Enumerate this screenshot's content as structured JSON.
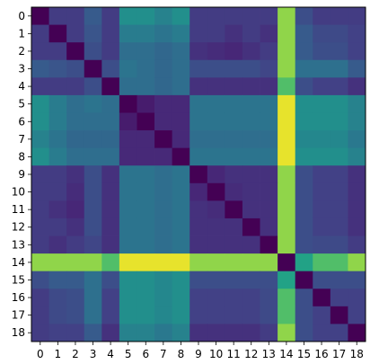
{
  "chart_data": {
    "type": "heatmap",
    "colormap": "viridis",
    "x_ticks": [
      "0",
      "1",
      "2",
      "3",
      "4",
      "5",
      "6",
      "7",
      "8",
      "9",
      "10",
      "11",
      "12",
      "13",
      "14",
      "15",
      "16",
      "17",
      "18"
    ],
    "y_ticks": [
      "0",
      "1",
      "2",
      "3",
      "4",
      "5",
      "6",
      "7",
      "8",
      "9",
      "10",
      "11",
      "12",
      "13",
      "14",
      "15",
      "16",
      "17",
      "18"
    ],
    "value_range": [
      0,
      1
    ],
    "grid": false,
    "values": [
      [
        0.0,
        0.22,
        0.22,
        0.36,
        0.22,
        0.62,
        0.62,
        0.55,
        0.62,
        0.22,
        0.22,
        0.22,
        0.22,
        0.22,
        0.9,
        0.3,
        0.22,
        0.22,
        0.22
      ],
      [
        0.22,
        0.0,
        0.22,
        0.33,
        0.22,
        0.52,
        0.52,
        0.48,
        0.52,
        0.22,
        0.22,
        0.18,
        0.22,
        0.18,
        0.9,
        0.36,
        0.28,
        0.28,
        0.24
      ],
      [
        0.22,
        0.22,
        0.0,
        0.3,
        0.22,
        0.45,
        0.45,
        0.42,
        0.45,
        0.18,
        0.16,
        0.14,
        0.18,
        0.22,
        0.9,
        0.36,
        0.3,
        0.3,
        0.24
      ],
      [
        0.36,
        0.33,
        0.3,
        0.0,
        0.3,
        0.48,
        0.45,
        0.42,
        0.45,
        0.3,
        0.3,
        0.3,
        0.3,
        0.26,
        0.9,
        0.46,
        0.46,
        0.46,
        0.36
      ],
      [
        0.22,
        0.22,
        0.22,
        0.3,
        0.0,
        0.45,
        0.45,
        0.42,
        0.45,
        0.18,
        0.18,
        0.18,
        0.18,
        0.18,
        0.82,
        0.3,
        0.24,
        0.24,
        0.18
      ],
      [
        0.62,
        0.52,
        0.45,
        0.48,
        0.45,
        0.0,
        0.1,
        0.15,
        0.15,
        0.48,
        0.48,
        0.48,
        0.48,
        0.48,
        0.98,
        0.62,
        0.62,
        0.62,
        0.55
      ],
      [
        0.62,
        0.52,
        0.45,
        0.45,
        0.45,
        0.1,
        0.0,
        0.15,
        0.15,
        0.48,
        0.48,
        0.48,
        0.48,
        0.48,
        0.98,
        0.62,
        0.62,
        0.62,
        0.55
      ],
      [
        0.55,
        0.48,
        0.42,
        0.42,
        0.42,
        0.15,
        0.15,
        0.0,
        0.15,
        0.45,
        0.45,
        0.45,
        0.45,
        0.45,
        0.98,
        0.58,
        0.58,
        0.58,
        0.5
      ],
      [
        0.62,
        0.52,
        0.45,
        0.45,
        0.45,
        0.15,
        0.15,
        0.15,
        0.0,
        0.48,
        0.48,
        0.48,
        0.48,
        0.48,
        0.98,
        0.62,
        0.62,
        0.62,
        0.55
      ],
      [
        0.22,
        0.22,
        0.18,
        0.3,
        0.18,
        0.48,
        0.48,
        0.45,
        0.48,
        0.0,
        0.14,
        0.18,
        0.18,
        0.18,
        0.9,
        0.3,
        0.24,
        0.24,
        0.18
      ],
      [
        0.22,
        0.22,
        0.16,
        0.3,
        0.18,
        0.48,
        0.48,
        0.45,
        0.48,
        0.14,
        0.0,
        0.16,
        0.18,
        0.18,
        0.9,
        0.3,
        0.24,
        0.24,
        0.18
      ],
      [
        0.22,
        0.18,
        0.14,
        0.3,
        0.18,
        0.48,
        0.48,
        0.45,
        0.48,
        0.18,
        0.16,
        0.0,
        0.18,
        0.18,
        0.9,
        0.3,
        0.24,
        0.24,
        0.18
      ],
      [
        0.22,
        0.22,
        0.18,
        0.3,
        0.18,
        0.48,
        0.48,
        0.45,
        0.48,
        0.18,
        0.18,
        0.18,
        0.0,
        0.18,
        0.9,
        0.3,
        0.24,
        0.24,
        0.18
      ],
      [
        0.22,
        0.18,
        0.22,
        0.26,
        0.18,
        0.48,
        0.48,
        0.45,
        0.48,
        0.18,
        0.18,
        0.18,
        0.18,
        0.0,
        0.9,
        0.3,
        0.28,
        0.28,
        0.22
      ],
      [
        0.9,
        0.9,
        0.9,
        0.9,
        0.82,
        0.98,
        0.98,
        0.98,
        0.98,
        0.9,
        0.9,
        0.9,
        0.9,
        0.9,
        0.0,
        0.72,
        0.82,
        0.82,
        0.9
      ],
      [
        0.3,
        0.36,
        0.36,
        0.46,
        0.3,
        0.62,
        0.62,
        0.58,
        0.62,
        0.3,
        0.3,
        0.3,
        0.3,
        0.3,
        0.72,
        0.0,
        0.3,
        0.3,
        0.3
      ],
      [
        0.22,
        0.28,
        0.3,
        0.46,
        0.24,
        0.62,
        0.62,
        0.58,
        0.62,
        0.24,
        0.24,
        0.24,
        0.24,
        0.28,
        0.82,
        0.3,
        0.0,
        0.24,
        0.24
      ],
      [
        0.22,
        0.28,
        0.3,
        0.46,
        0.24,
        0.62,
        0.62,
        0.58,
        0.62,
        0.24,
        0.24,
        0.24,
        0.24,
        0.28,
        0.82,
        0.3,
        0.24,
        0.0,
        0.24
      ],
      [
        0.22,
        0.24,
        0.24,
        0.36,
        0.18,
        0.55,
        0.55,
        0.5,
        0.55,
        0.18,
        0.18,
        0.18,
        0.18,
        0.22,
        0.9,
        0.3,
        0.24,
        0.24,
        0.0
      ]
    ]
  }
}
